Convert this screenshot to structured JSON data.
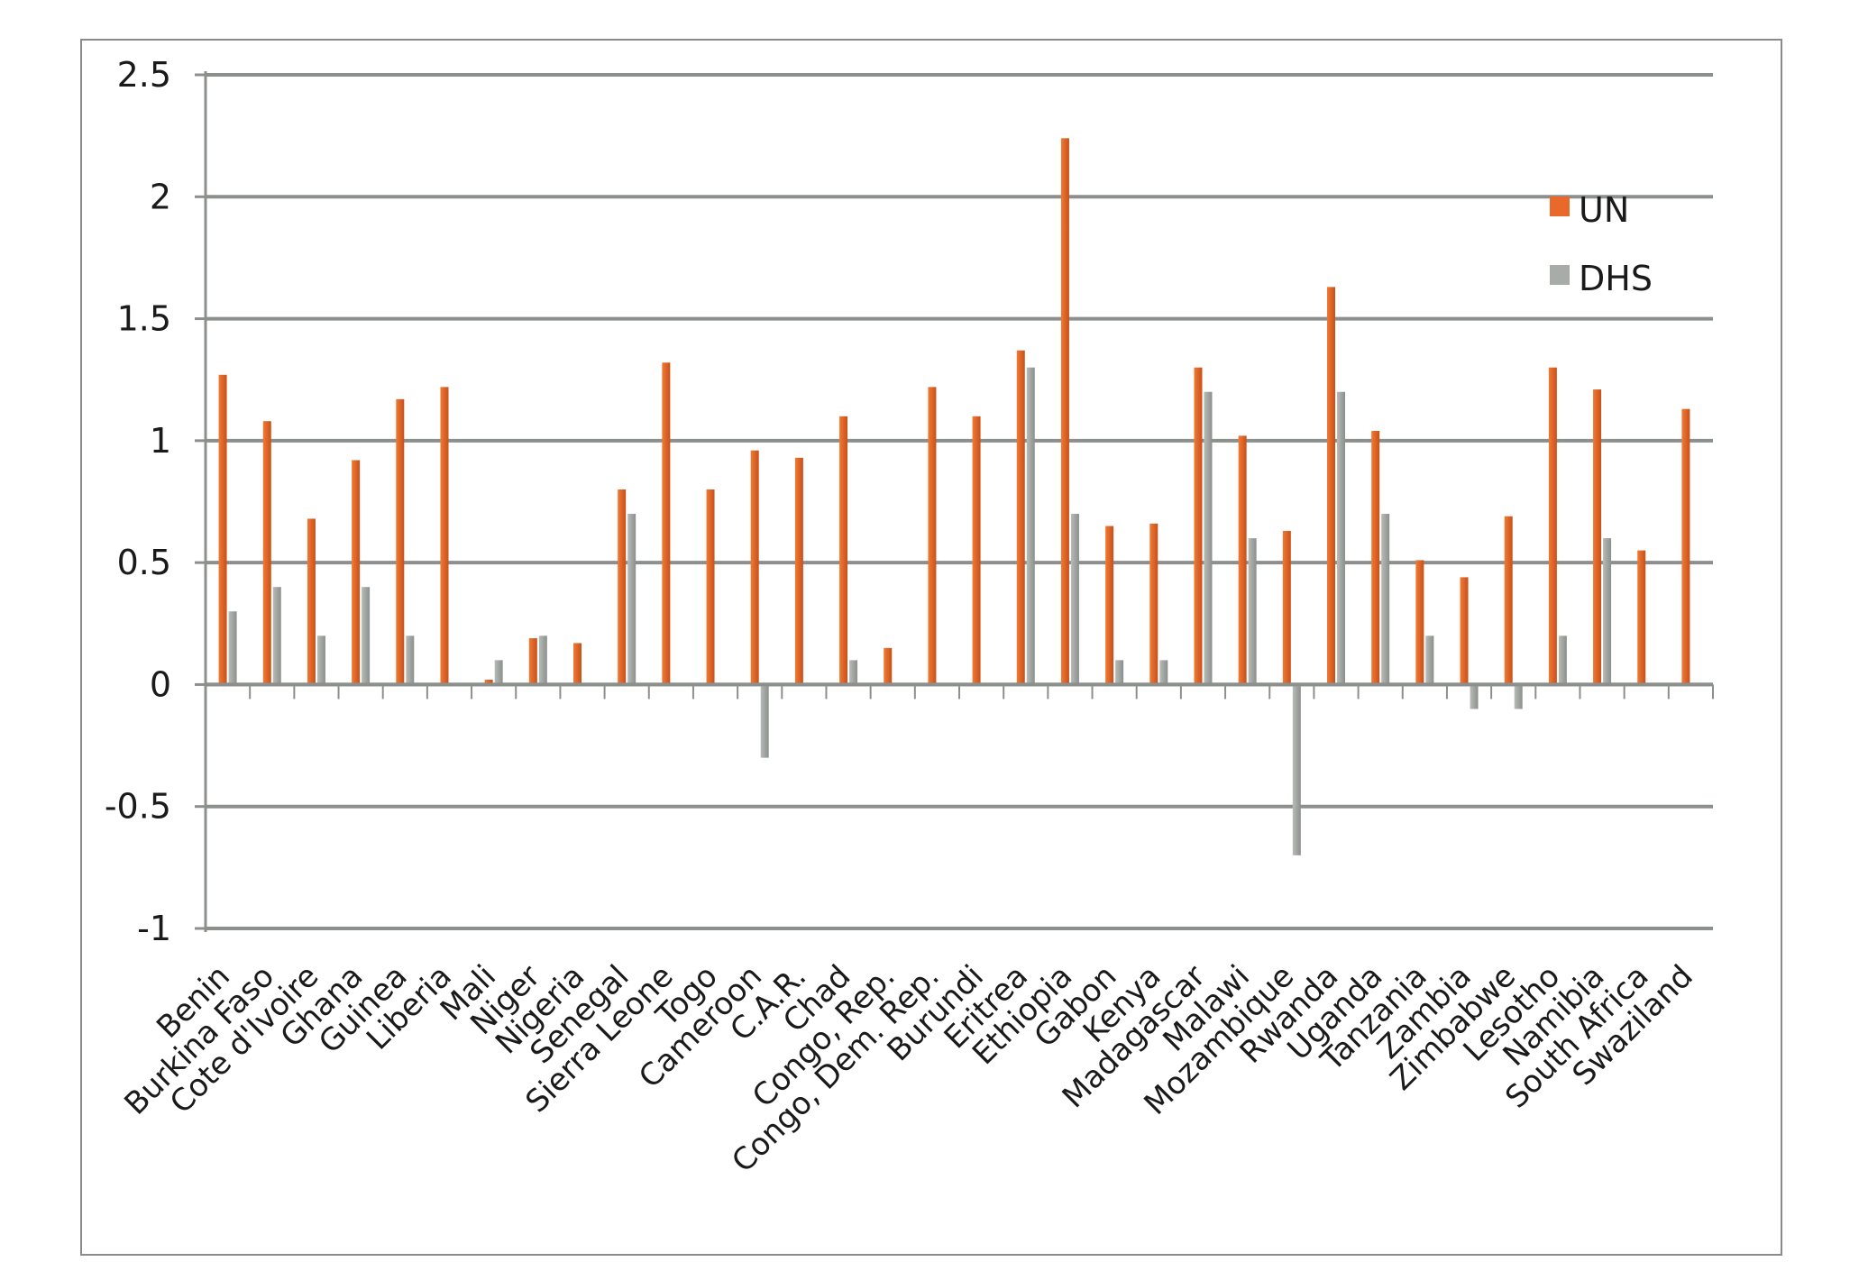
{
  "chart_data": {
    "type": "bar",
    "title": "",
    "xlabel": "",
    "ylabel": "",
    "ylim": [
      -1,
      2.5
    ],
    "yticks": [
      "2.5",
      "2",
      "1.5",
      "1",
      "0.5",
      "0",
      "-0.5",
      "-1"
    ],
    "ytick_values": [
      2.5,
      2,
      1.5,
      1,
      0.5,
      0,
      -0.5,
      -1
    ],
    "grid": true,
    "legend_position": "top-right",
    "categories": [
      "Benin",
      "Burkina Faso",
      "Cote d'Ivoire",
      "Ghana",
      "Guinea",
      "Liberia",
      "Mali",
      "Niger",
      "Nigeria",
      "Senegal",
      "Sierra Leone",
      "Togo",
      "Cameroon",
      "C.A.R.",
      "Chad",
      "Congo, Rep.",
      "Congo, Dem. Rep.",
      "Burundi",
      "Eritrea",
      "Ethiopia",
      "Gabon",
      "Kenya",
      "Madagascar",
      "Malawi",
      "Mozambique",
      "Rwanda",
      "Uganda",
      "Tanzania",
      "Zambia",
      "Zimbabwe",
      "Lesotho",
      "Namibia",
      "South Africa",
      "Swaziland"
    ],
    "series": [
      {
        "name": "UN",
        "color": "#e8692a",
        "values": [
          1.27,
          1.08,
          0.68,
          0.92,
          1.17,
          1.22,
          0.02,
          0.19,
          0.17,
          0.8,
          1.32,
          0.8,
          0.96,
          0.93,
          1.1,
          0.15,
          1.22,
          1.1,
          1.37,
          2.24,
          0.65,
          0.66,
          1.3,
          1.02,
          0.63,
          1.63,
          1.04,
          0.51,
          0.44,
          0.69,
          1.3,
          1.21,
          0.55,
          1.13
        ]
      },
      {
        "name": "DHS",
        "color": "#a8aca8",
        "values": [
          0.3,
          0.4,
          0.2,
          0.4,
          0.2,
          0,
          0.1,
          0.2,
          0,
          0.7,
          0,
          0,
          -0.3,
          0,
          0.1,
          0,
          0,
          0,
          1.3,
          0.7,
          0.1,
          0.1,
          1.2,
          0.6,
          -0.7,
          1.2,
          0.7,
          0.2,
          -0.1,
          -0.1,
          0.2,
          0.6,
          0,
          0
        ]
      }
    ]
  }
}
